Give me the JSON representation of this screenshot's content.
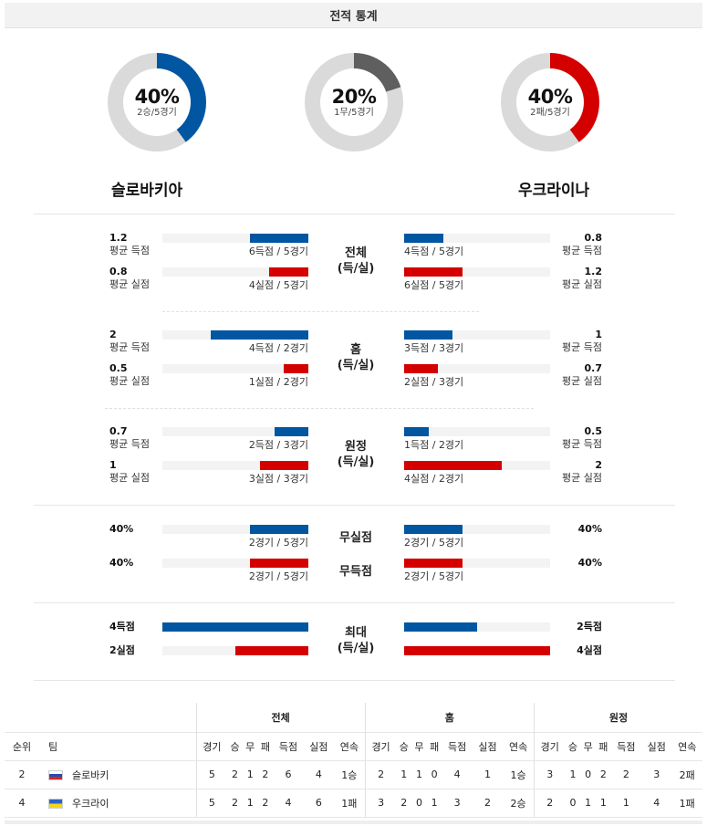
{
  "header": {
    "title": "전적 통계"
  },
  "colors": {
    "blue": "#0056a1",
    "red": "#d40000",
    "gray": "#5f5f5f",
    "track": "#dadada"
  },
  "donuts": [
    {
      "pct": "40%",
      "sub": "2승/5경기",
      "fraction": 0.4,
      "color": "blue",
      "position": "left"
    },
    {
      "pct": "20%",
      "sub": "1무/5경기",
      "fraction": 0.2,
      "color": "gray",
      "position": "center"
    },
    {
      "pct": "40%",
      "sub": "2패/5경기",
      "fraction": 0.4,
      "color": "red",
      "position": "right"
    }
  ],
  "teams": {
    "home": "슬로바키아",
    "away": "우크라이나"
  },
  "stat_rows": [
    {
      "label": "전체\n(득/실)",
      "lines": [
        {
          "left_val": "1.2",
          "left_sub": "평균 득점",
          "left_bar": "6득점 / 5경기",
          "left_frac": 0.4,
          "right_val": "0.8",
          "right_sub": "평균 득점",
          "right_bar": "4득점 / 5경기",
          "right_frac": 0.27,
          "color": "blue"
        },
        {
          "left_val": "0.8",
          "left_sub": "평균 실점",
          "left_bar": "4실점 / 5경기",
          "left_frac": 0.27,
          "right_val": "1.2",
          "right_sub": "평균 실점",
          "right_bar": "6실점 / 5경기",
          "right_frac": 0.4,
          "color": "red"
        }
      ]
    },
    {
      "label": "홈\n(득/실)",
      "lines": [
        {
          "left_val": "2",
          "left_sub": "평균 득점",
          "left_bar": "4득점 / 2경기",
          "left_frac": 0.67,
          "right_val": "1",
          "right_sub": "평균 득점",
          "right_bar": "3득점 / 3경기",
          "right_frac": 0.33,
          "color": "blue"
        },
        {
          "left_val": "0.5",
          "left_sub": "평균 실점",
          "left_bar": "1실점 / 2경기",
          "left_frac": 0.17,
          "right_val": "0.7",
          "right_sub": "평균 실점",
          "right_bar": "2실점 / 3경기",
          "right_frac": 0.23,
          "color": "red"
        }
      ]
    },
    {
      "label": "원정\n(득/실)",
      "lines": [
        {
          "left_val": "0.7",
          "left_sub": "평균 득점",
          "left_bar": "2득점 / 3경기",
          "left_frac": 0.23,
          "right_val": "0.5",
          "right_sub": "평균 득점",
          "right_bar": "1득점 / 2경기",
          "right_frac": 0.17,
          "color": "blue"
        },
        {
          "left_val": "1",
          "left_sub": "평균 실점",
          "left_bar": "3실점 / 3경기",
          "left_frac": 0.33,
          "right_val": "2",
          "right_sub": "평균 실점",
          "right_bar": "4실점 / 2경기",
          "right_frac": 0.67,
          "color": "red"
        }
      ]
    }
  ],
  "clean": [
    {
      "label": "무실점",
      "left_val": "40%",
      "left_bar": "2경기 / 5경기",
      "left_frac": 0.4,
      "right_val": "40%",
      "right_bar": "2경기 / 5경기",
      "right_frac": 0.4,
      "color": "blue"
    },
    {
      "label": "무득점",
      "left_val": "40%",
      "left_bar": "2경기 / 5경기",
      "left_frac": 0.4,
      "right_val": "40%",
      "right_bar": "2경기 / 5경기",
      "right_frac": 0.4,
      "color": "red"
    }
  ],
  "max": {
    "label": "최대\n(득/실)",
    "lines": [
      {
        "left_val": "4득점",
        "left_frac": 1.0,
        "right_val": "2득점",
        "right_frac": 0.5,
        "color": "blue"
      },
      {
        "left_val": "2실점",
        "left_frac": 0.5,
        "right_val": "4실점",
        "right_frac": 1.0,
        "color": "red"
      }
    ]
  },
  "standings": {
    "groups": [
      "전체",
      "홈",
      "원정"
    ],
    "rank_label": "순위",
    "team_label": "팀",
    "columns": [
      "경기",
      "승",
      "무",
      "패",
      "득점",
      "실점",
      "연속"
    ],
    "rows": [
      {
        "rank": "2",
        "team": "슬로바키",
        "flag": "sk",
        "total": [
          "5",
          "2",
          "1",
          "2",
          "6",
          "4",
          "1승"
        ],
        "home": [
          "2",
          "1",
          "1",
          "0",
          "4",
          "1",
          "1승"
        ],
        "away": [
          "3",
          "1",
          "0",
          "2",
          "2",
          "3",
          "2패"
        ]
      },
      {
        "rank": "4",
        "team": "우크라이",
        "flag": "ua",
        "total": [
          "5",
          "2",
          "1",
          "2",
          "4",
          "6",
          "1패"
        ],
        "home": [
          "3",
          "2",
          "0",
          "1",
          "3",
          "2",
          "2승"
        ],
        "away": [
          "2",
          "0",
          "1",
          "1",
          "1",
          "4",
          "1패"
        ]
      }
    ]
  }
}
